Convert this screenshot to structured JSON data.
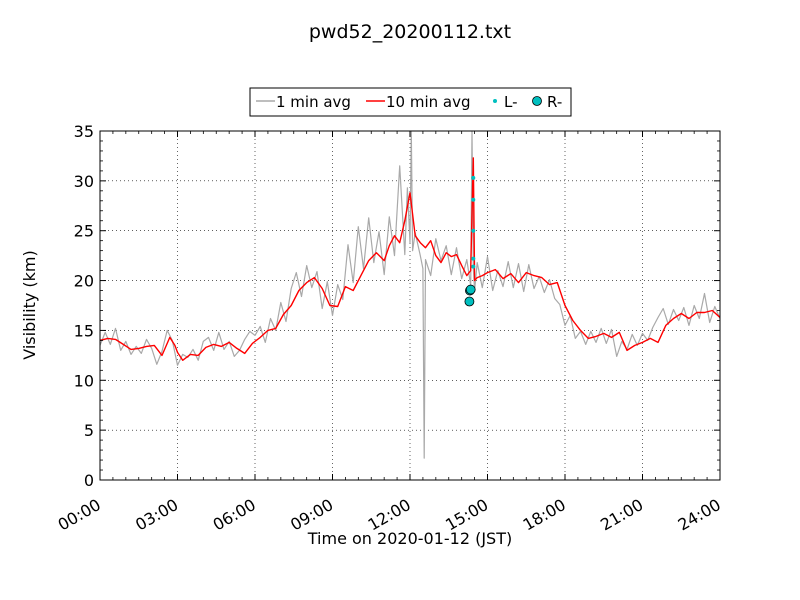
{
  "chart_data": {
    "type": "line",
    "title": "pwd52_20200112.txt",
    "xlabel": "Time on 2020-01-12 (JST)",
    "ylabel": "Visibility (km)",
    "xlim_hours": [
      0,
      24
    ],
    "ylim": [
      0,
      35
    ],
    "x_ticks": [
      "00:00",
      "03:00",
      "06:00",
      "09:00",
      "12:00",
      "15:00",
      "18:00",
      "21:00",
      "24:00"
    ],
    "y_ticks": [
      "0",
      "5",
      "10",
      "15",
      "20",
      "25",
      "30",
      "35"
    ],
    "grid": true,
    "legend_position": "top-center",
    "legend": [
      {
        "label": "1 min avg",
        "style": "line",
        "color": "#a9a9a9"
      },
      {
        "label": "10 min avg",
        "style": "line",
        "color": "#ff0000"
      },
      {
        "label": "L-",
        "style": "dot",
        "color": "#00bfbf"
      },
      {
        "label": "R-",
        "style": "circle",
        "color": "#00bfbf"
      }
    ],
    "series": [
      {
        "name": "10 min avg",
        "color": "#ff0000",
        "x_hours": [
          0,
          0.3,
          0.6,
          0.9,
          1.2,
          1.5,
          1.8,
          2.1,
          2.4,
          2.7,
          2.9,
          3.0,
          3.2,
          3.5,
          3.8,
          4.1,
          4.4,
          4.7,
          5.0,
          5.3,
          5.6,
          5.9,
          6.2,
          6.5,
          6.8,
          7.1,
          7.4,
          7.7,
          8.0,
          8.3,
          8.6,
          8.9,
          9.2,
          9.5,
          9.8,
          10.1,
          10.4,
          10.7,
          11.0,
          11.2,
          11.4,
          11.6,
          11.8,
          12.0,
          12.2,
          12.4,
          12.6,
          12.8,
          13.0,
          13.2,
          13.4,
          13.6,
          13.8,
          14.0,
          14.2,
          14.35,
          14.45,
          14.5,
          14.6,
          14.8,
          15.0,
          15.3,
          15.6,
          15.9,
          16.2,
          16.5,
          16.8,
          17.1,
          17.4,
          17.7,
          18.0,
          18.3,
          18.6,
          18.9,
          19.2,
          19.5,
          19.8,
          20.1,
          20.4,
          20.7,
          21.0,
          21.3,
          21.6,
          21.9,
          22.2,
          22.5,
          22.8,
          23.1,
          23.4,
          23.7,
          24.0
        ],
        "values": [
          14.0,
          14.2,
          14.1,
          13.6,
          13.1,
          13.2,
          13.4,
          13.5,
          12.5,
          14.3,
          13.5,
          12.8,
          12.0,
          12.6,
          12.5,
          13.3,
          13.6,
          13.4,
          13.8,
          13.2,
          12.7,
          13.7,
          14.3,
          15.0,
          15.2,
          16.6,
          17.5,
          19.0,
          19.8,
          20.3,
          19.2,
          17.5,
          17.4,
          19.4,
          19.0,
          20.5,
          22.0,
          22.8,
          22.0,
          23.5,
          24.5,
          23.8,
          26.0,
          28.8,
          24.5,
          23.8,
          23.3,
          24.0,
          22.5,
          21.8,
          22.8,
          22.4,
          22.6,
          21.5,
          20.5,
          21.0,
          32.3,
          20.0,
          20.3,
          20.5,
          20.8,
          21.1,
          20.2,
          20.7,
          19.8,
          20.8,
          20.5,
          20.3,
          19.6,
          19.8,
          17.5,
          16.0,
          15.0,
          14.2,
          14.4,
          14.7,
          14.3,
          14.8,
          13.0,
          13.5,
          13.8,
          14.2,
          13.8,
          15.5,
          16.2,
          16.7,
          16.2,
          16.8,
          16.8,
          17.0,
          16.3
        ]
      },
      {
        "name": "1 min avg",
        "color": "#a9a9a9",
        "x_hours": [
          0,
          0.2,
          0.4,
          0.6,
          0.8,
          1.0,
          1.2,
          1.4,
          1.6,
          1.8,
          2.0,
          2.2,
          2.4,
          2.6,
          2.8,
          3.0,
          3.2,
          3.4,
          3.6,
          3.8,
          4.0,
          4.2,
          4.4,
          4.6,
          4.8,
          5.0,
          5.2,
          5.4,
          5.6,
          5.8,
          6.0,
          6.2,
          6.4,
          6.6,
          6.8,
          7.0,
          7.2,
          7.4,
          7.6,
          7.8,
          8.0,
          8.2,
          8.4,
          8.6,
          8.8,
          9.0,
          9.2,
          9.4,
          9.6,
          9.8,
          10.0,
          10.2,
          10.4,
          10.6,
          10.8,
          11.0,
          11.2,
          11.4,
          11.6,
          11.8,
          11.9,
          12.0,
          12.05,
          12.1,
          12.2,
          12.4,
          12.5,
          12.55,
          12.6,
          12.8,
          13.0,
          13.2,
          13.4,
          13.6,
          13.8,
          14.0,
          14.2,
          14.35,
          14.4,
          14.45,
          14.5,
          14.6,
          14.8,
          15.0,
          15.2,
          15.4,
          15.6,
          15.8,
          16.0,
          16.2,
          16.4,
          16.6,
          16.8,
          17.0,
          17.2,
          17.4,
          17.6,
          17.8,
          18.0,
          18.2,
          18.4,
          18.6,
          18.8,
          19.0,
          19.2,
          19.4,
          19.6,
          19.8,
          20.0,
          20.2,
          20.4,
          20.6,
          20.8,
          21.0,
          21.2,
          21.4,
          21.6,
          21.8,
          22.0,
          22.2,
          22.4,
          22.6,
          22.8,
          23.0,
          23.2,
          23.4,
          23.6,
          23.8,
          24.0
        ],
        "values": [
          13.5,
          14.8,
          13.6,
          15.2,
          13.0,
          13.9,
          12.6,
          13.4,
          12.7,
          14.1,
          13.2,
          11.6,
          12.9,
          15.0,
          14.0,
          11.5,
          12.6,
          12.3,
          13.1,
          12.0,
          13.9,
          14.3,
          13.0,
          14.8,
          13.1,
          13.9,
          12.4,
          13.0,
          14.1,
          14.9,
          14.5,
          15.4,
          13.8,
          16.2,
          15.0,
          17.8,
          15.9,
          19.2,
          20.8,
          18.4,
          21.5,
          19.3,
          20.9,
          17.2,
          19.9,
          16.5,
          19.6,
          18.1,
          23.6,
          19.8,
          25.4,
          21.2,
          26.3,
          21.8,
          24.9,
          20.6,
          26.4,
          22.5,
          31.5,
          22.6,
          29.3,
          23.8,
          35.0,
          23.0,
          24.8,
          22.5,
          21.2,
          2.2,
          22.1,
          20.5,
          24.2,
          22.0,
          23.5,
          20.6,
          23.3,
          20.2,
          22.1,
          19.5,
          35.0,
          21.3,
          19.0,
          21.8,
          19.3,
          22.4,
          19.0,
          21.0,
          19.4,
          21.9,
          19.3,
          21.7,
          18.9,
          21.6,
          19.2,
          20.4,
          18.8,
          20.1,
          18.2,
          17.6,
          15.5,
          16.5,
          14.2,
          14.9,
          13.6,
          14.9,
          13.8,
          15.2,
          13.7,
          15.1,
          12.4,
          13.9,
          13.1,
          14.6,
          13.5,
          14.7,
          14.0,
          15.3,
          16.3,
          17.2,
          15.6,
          17.1,
          16.0,
          17.3,
          15.5,
          17.5,
          16.2,
          18.7,
          15.8,
          17.4,
          16.2
        ]
      },
      {
        "name": "L-",
        "color": "#00bfbf",
        "x_hours": [
          14.45,
          14.45,
          14.45,
          14.45,
          14.45
        ],
        "values": [
          30.3,
          28.1,
          25.0,
          22.2,
          21.4
        ]
      },
      {
        "name": "R-",
        "color": "#00bfbf",
        "x_hours": [
          14.32,
          14.35,
          14.3
        ],
        "values": [
          19.0,
          19.1,
          17.9
        ]
      }
    ]
  }
}
